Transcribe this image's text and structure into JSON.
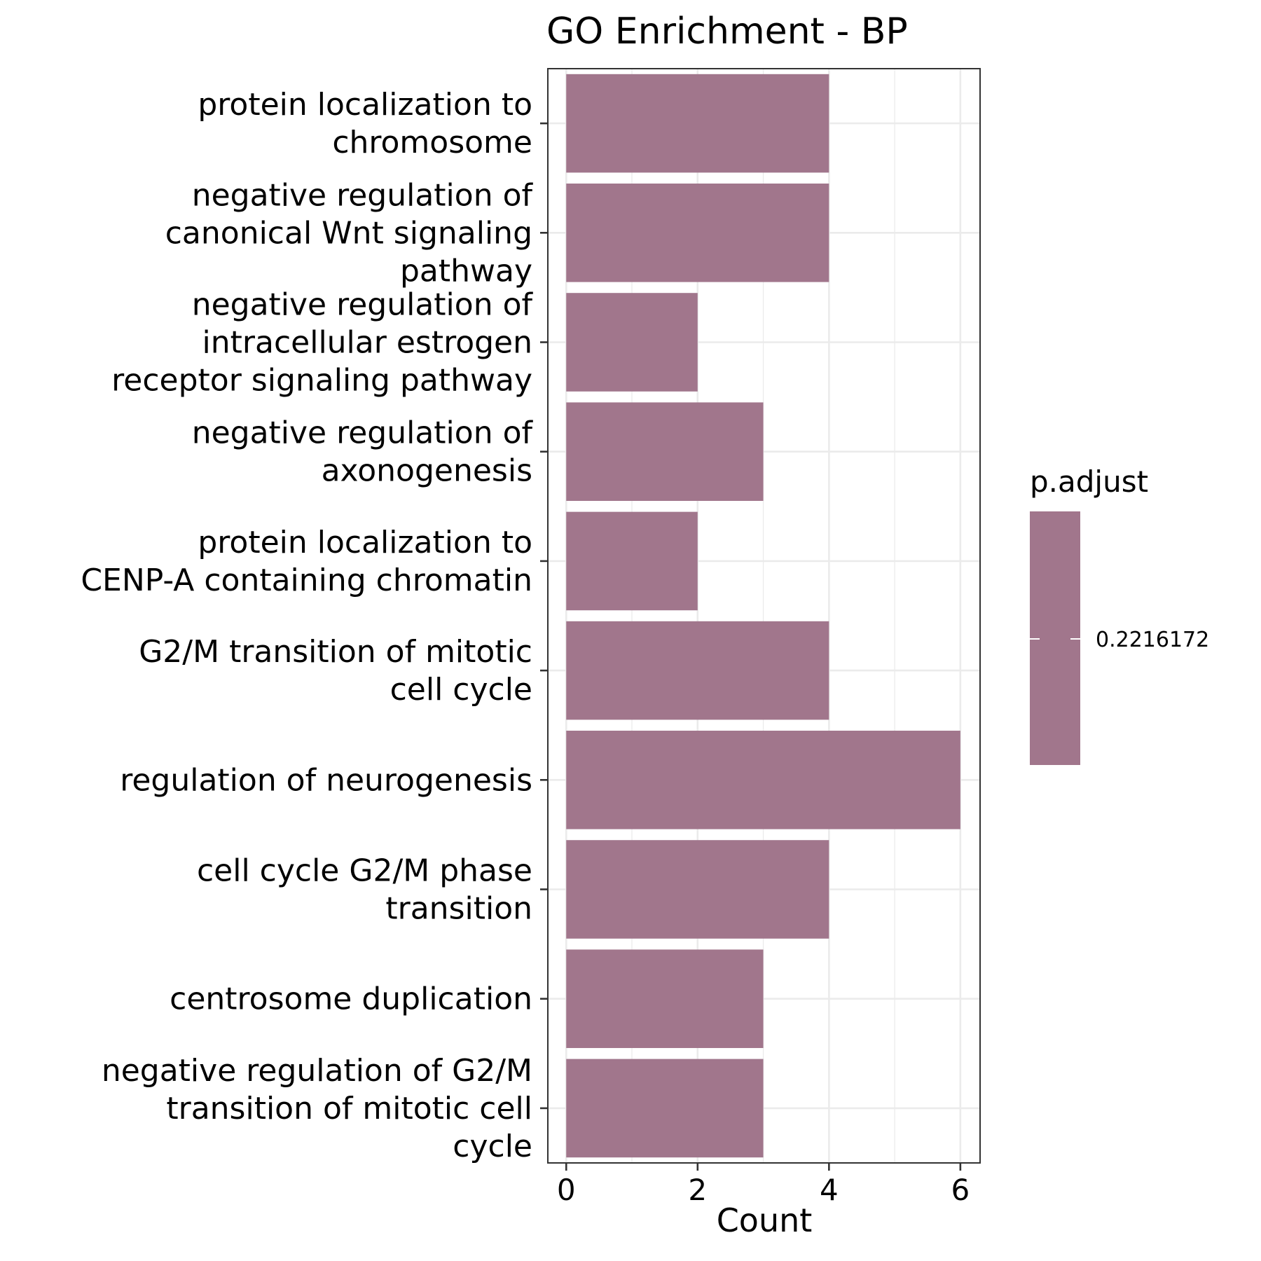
{
  "chart_data": {
    "type": "bar",
    "orientation": "horizontal",
    "title": "GO Enrichment - BP",
    "xlabel": "Count",
    "ylabel": "",
    "xlim": [
      -0.28,
      6.3
    ],
    "xticks": [
      0,
      2,
      4,
      6
    ],
    "grid": true,
    "categories": [
      "protein localization to\nchromosome",
      "negative regulation of\ncanonical Wnt signaling\npathway",
      "negative regulation of\nintracellular estrogen\nreceptor signaling pathway",
      "negative regulation of\naxonogenesis",
      "protein localization to\nCENP-A containing chromatin",
      "G2/M transition of mitotic\ncell cycle",
      "regulation of neurogenesis",
      "cell cycle G2/M phase\ntransition",
      "centrosome duplication",
      "negative regulation of G2/M\ntransition of mitotic cell\ncycle"
    ],
    "values": [
      4,
      4,
      2,
      3,
      2,
      4,
      6,
      4,
      3,
      3
    ],
    "bar_color": "#a1768c",
    "legend": {
      "title": "p.adjust",
      "label": "0.2216172",
      "placement": "right"
    }
  }
}
